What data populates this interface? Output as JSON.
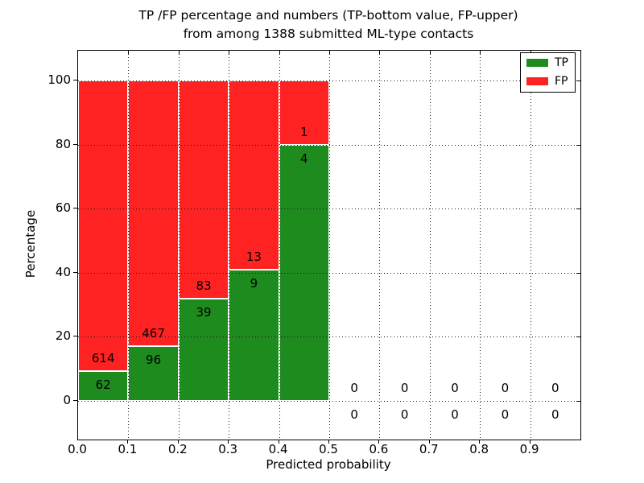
{
  "figure": {
    "title_line1": "TP /FP percentage and numbers (TP-bottom value, FP-upper)",
    "title_line2": "from among 1388 submitted ML-type contacts"
  },
  "chart_data": {
    "type": "bar",
    "stacked": true,
    "units": "percent of bin total",
    "title": "TP /FP percentage and numbers (TP-bottom value, FP-upper) from among 1388 submitted ML-type contacts",
    "xlabel": "Predicted probability",
    "ylabel": "Percentage",
    "total_contacts": 1388,
    "bin_width": 0.1,
    "bin_starts": [
      0.0,
      0.1,
      0.2,
      0.3,
      0.4,
      0.5,
      0.6,
      0.7,
      0.8,
      0.9
    ],
    "x_tick_labels": [
      "0.0",
      "0.1",
      "0.2",
      "0.3",
      "0.4",
      "0.5",
      "0.6",
      "0.7",
      "0.8",
      "0.9"
    ],
    "y_tick_values": [
      0,
      20,
      40,
      60,
      80,
      100
    ],
    "xlim": [
      0.0,
      1.0
    ],
    "ylim": [
      -12,
      109
    ],
    "grid": "dotted black, horizontal at y ticks and vertical at x ticks",
    "legend_position": "upper right",
    "legend": [
      {
        "name": "TP",
        "color": "#1e8b1e"
      },
      {
        "name": "FP",
        "color": "#ff2222"
      }
    ],
    "series": [
      {
        "name": "TP",
        "counts": [
          62,
          96,
          39,
          9,
          4,
          0,
          0,
          0,
          0,
          0
        ]
      },
      {
        "name": "FP",
        "counts": [
          614,
          467,
          83,
          13,
          1,
          0,
          0,
          0,
          0,
          0
        ]
      }
    ],
    "tp_percent_by_bin": [
      9.2,
      17.1,
      32.0,
      40.9,
      80.0,
      0,
      0,
      0,
      0,
      0
    ],
    "colors": {
      "tp_green": "#1e8b1e",
      "fp_red": "#ff2222",
      "grid": "#1a1a1a",
      "bar_edge": "#ffffff"
    }
  }
}
